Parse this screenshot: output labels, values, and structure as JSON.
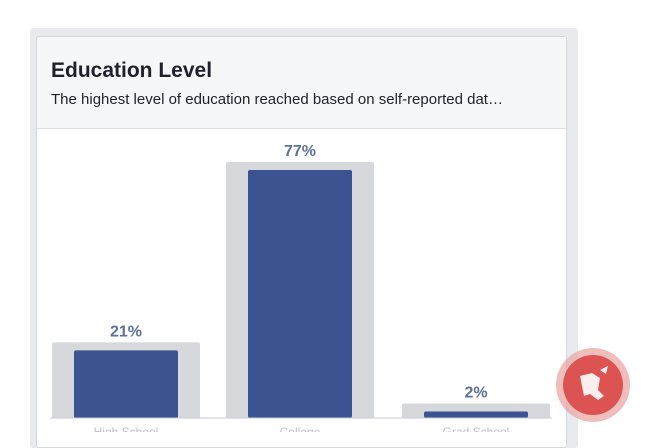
{
  "header": {
    "title": "Education Level",
    "subtitle": "The highest level of education reached based on self-reported dat…"
  },
  "colors": {
    "bar": "#3b5391",
    "bar_background": "#d7d8dc",
    "label": "#5f7198",
    "watermark": "#d8413f"
  },
  "chart_data": {
    "type": "bar",
    "categories": [
      "High School",
      "College",
      "Grad School"
    ],
    "values": [
      21,
      77,
      2
    ],
    "value_labels": [
      "21%",
      "77%",
      "2%"
    ],
    "title": "Education Level",
    "subtitle": "The highest level of education reached based on self-reported dat…",
    "xlabel": "",
    "ylabel": "",
    "ylim": [
      0,
      100
    ],
    "grid": false,
    "legend": "none"
  }
}
